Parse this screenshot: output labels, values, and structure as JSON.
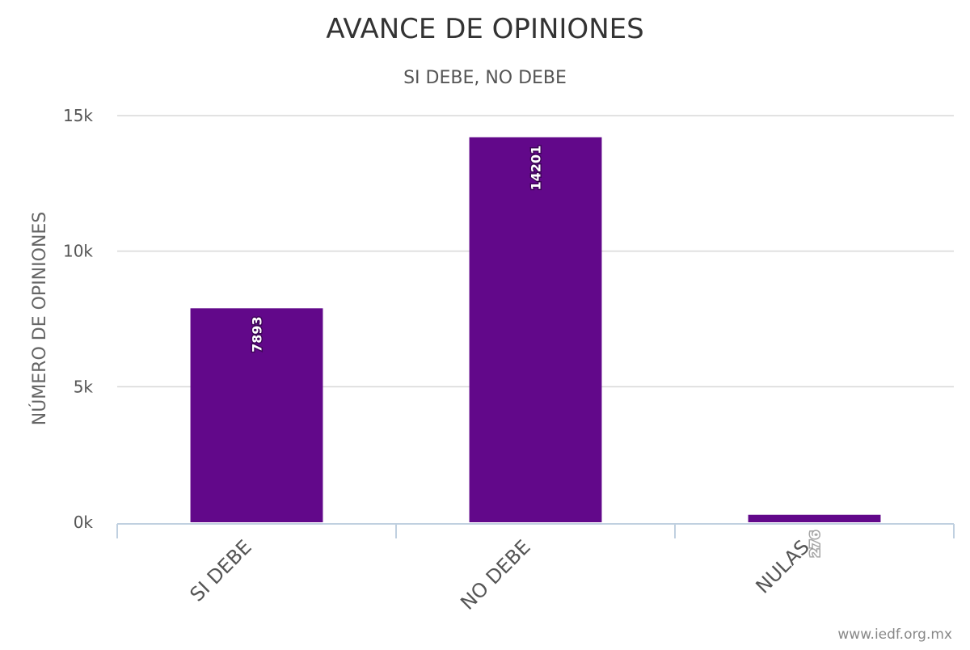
{
  "chart_data": {
    "type": "bar",
    "title": "AVANCE DE OPINIONES",
    "subtitle": "SI DEBE, NO DEBE",
    "ylabel": "NÚMERO DE OPINIONES",
    "xlabel": "",
    "categories": [
      "SI DEBE",
      "NO DEBE",
      "NULAS"
    ],
    "values": [
      7893,
      14201,
      276
    ],
    "data_labels": [
      "7893",
      "14201",
      "276"
    ],
    "ylim": [
      0,
      15000
    ],
    "y_ticks": [
      0,
      5000,
      10000,
      15000
    ],
    "y_tick_labels": [
      "0k",
      "5k",
      "10k",
      "15k"
    ],
    "grid": true,
    "legend": "none",
    "bar_color": "#62088a",
    "credit": "www.iedf.org.mx"
  }
}
